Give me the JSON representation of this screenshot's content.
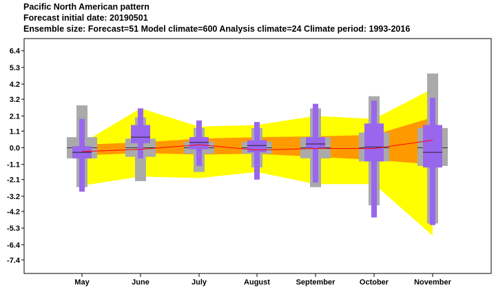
{
  "chart_data": {
    "type": "box",
    "title": "Pacific North American pattern",
    "subtitle": "Forecast initial date: 20190501",
    "subtitle2": "Ensemble size: Forecast=51 Model climate=600 Analysis climate=24   Climate period: 1993-2016",
    "categories": [
      "May",
      "June",
      "July",
      "August",
      "September",
      "October",
      "November"
    ],
    "yticks": [
      "6.4",
      "5.3",
      "4.2",
      "3.2",
      "2.1",
      "1.1",
      "0.0",
      "-1.1",
      "-2.1",
      "-3.2",
      "-4.2",
      "-5.3",
      "-6.4",
      "-7.4"
    ],
    "ylim": [
      -8.0,
      7.0
    ],
    "colors": {
      "climate_outer": "#ffff00",
      "climate_inner": "#ff9900",
      "model_climate": "#aaaaaa",
      "forecast": "#9966ee",
      "median_line": "#ff0000"
    },
    "climate_band": {
      "outer_upper": [
        0.3,
        2.6,
        1.4,
        1.5,
        2.1,
        1.9,
        3.9
      ],
      "outer_lower": [
        -2.5,
        -1.9,
        -2.0,
        -1.6,
        -2.4,
        -2.4,
        -5.8
      ],
      "inner_upper": [
        0.2,
        0.35,
        0.6,
        0.7,
        0.75,
        0.85,
        2.0
      ],
      "inner_lower": [
        -0.5,
        -0.35,
        -0.45,
        -0.4,
        -0.6,
        -0.8,
        -1.1
      ],
      "median": [
        -0.25,
        -0.1,
        0.2,
        -0.15,
        -0.05,
        -0.05,
        0.5
      ]
    },
    "model_climate": [
      {
        "min": -2.6,
        "q1": -0.7,
        "median": 0.0,
        "q3": 0.7,
        "max": 2.8
      },
      {
        "min": -2.2,
        "q1": -0.6,
        "median": 0.0,
        "q3": 0.6,
        "max": 2.0
      },
      {
        "min": -1.6,
        "q1": -0.4,
        "median": 0.0,
        "q3": 0.4,
        "max": 1.3
      },
      {
        "min": -1.3,
        "q1": -0.4,
        "median": 0.0,
        "q3": 0.4,
        "max": 1.3
      },
      {
        "min": -2.6,
        "q1": -0.7,
        "median": 0.0,
        "q3": 0.7,
        "max": 2.6
      },
      {
        "min": -3.8,
        "q1": -0.9,
        "median": 0.0,
        "q3": 1.0,
        "max": 3.4
      },
      {
        "min": -5.0,
        "q1": -1.2,
        "median": 0.0,
        "q3": 1.3,
        "max": 4.9
      }
    ],
    "forecast": [
      {
        "min": -2.9,
        "q1": -0.7,
        "median": -0.3,
        "q3": 0.1,
        "max": 1.9
      },
      {
        "min": -0.7,
        "q1": 0.3,
        "median": 0.7,
        "q3": 1.5,
        "max": 2.6
      },
      {
        "min": -1.2,
        "q1": -0.1,
        "median": 0.35,
        "q3": 0.7,
        "max": 1.8
      },
      {
        "min": -2.1,
        "q1": -0.3,
        "median": 0.15,
        "q3": 0.5,
        "max": 1.7
      },
      {
        "min": -2.3,
        "q1": 0.0,
        "median": 0.25,
        "q3": 0.7,
        "max": 2.9
      },
      {
        "min": -4.6,
        "q1": -0.9,
        "median": 0.05,
        "q3": 1.6,
        "max": 3.1
      },
      {
        "min": -5.1,
        "q1": -1.3,
        "median": -0.3,
        "q3": 1.5,
        "max": 3.3
      }
    ]
  }
}
